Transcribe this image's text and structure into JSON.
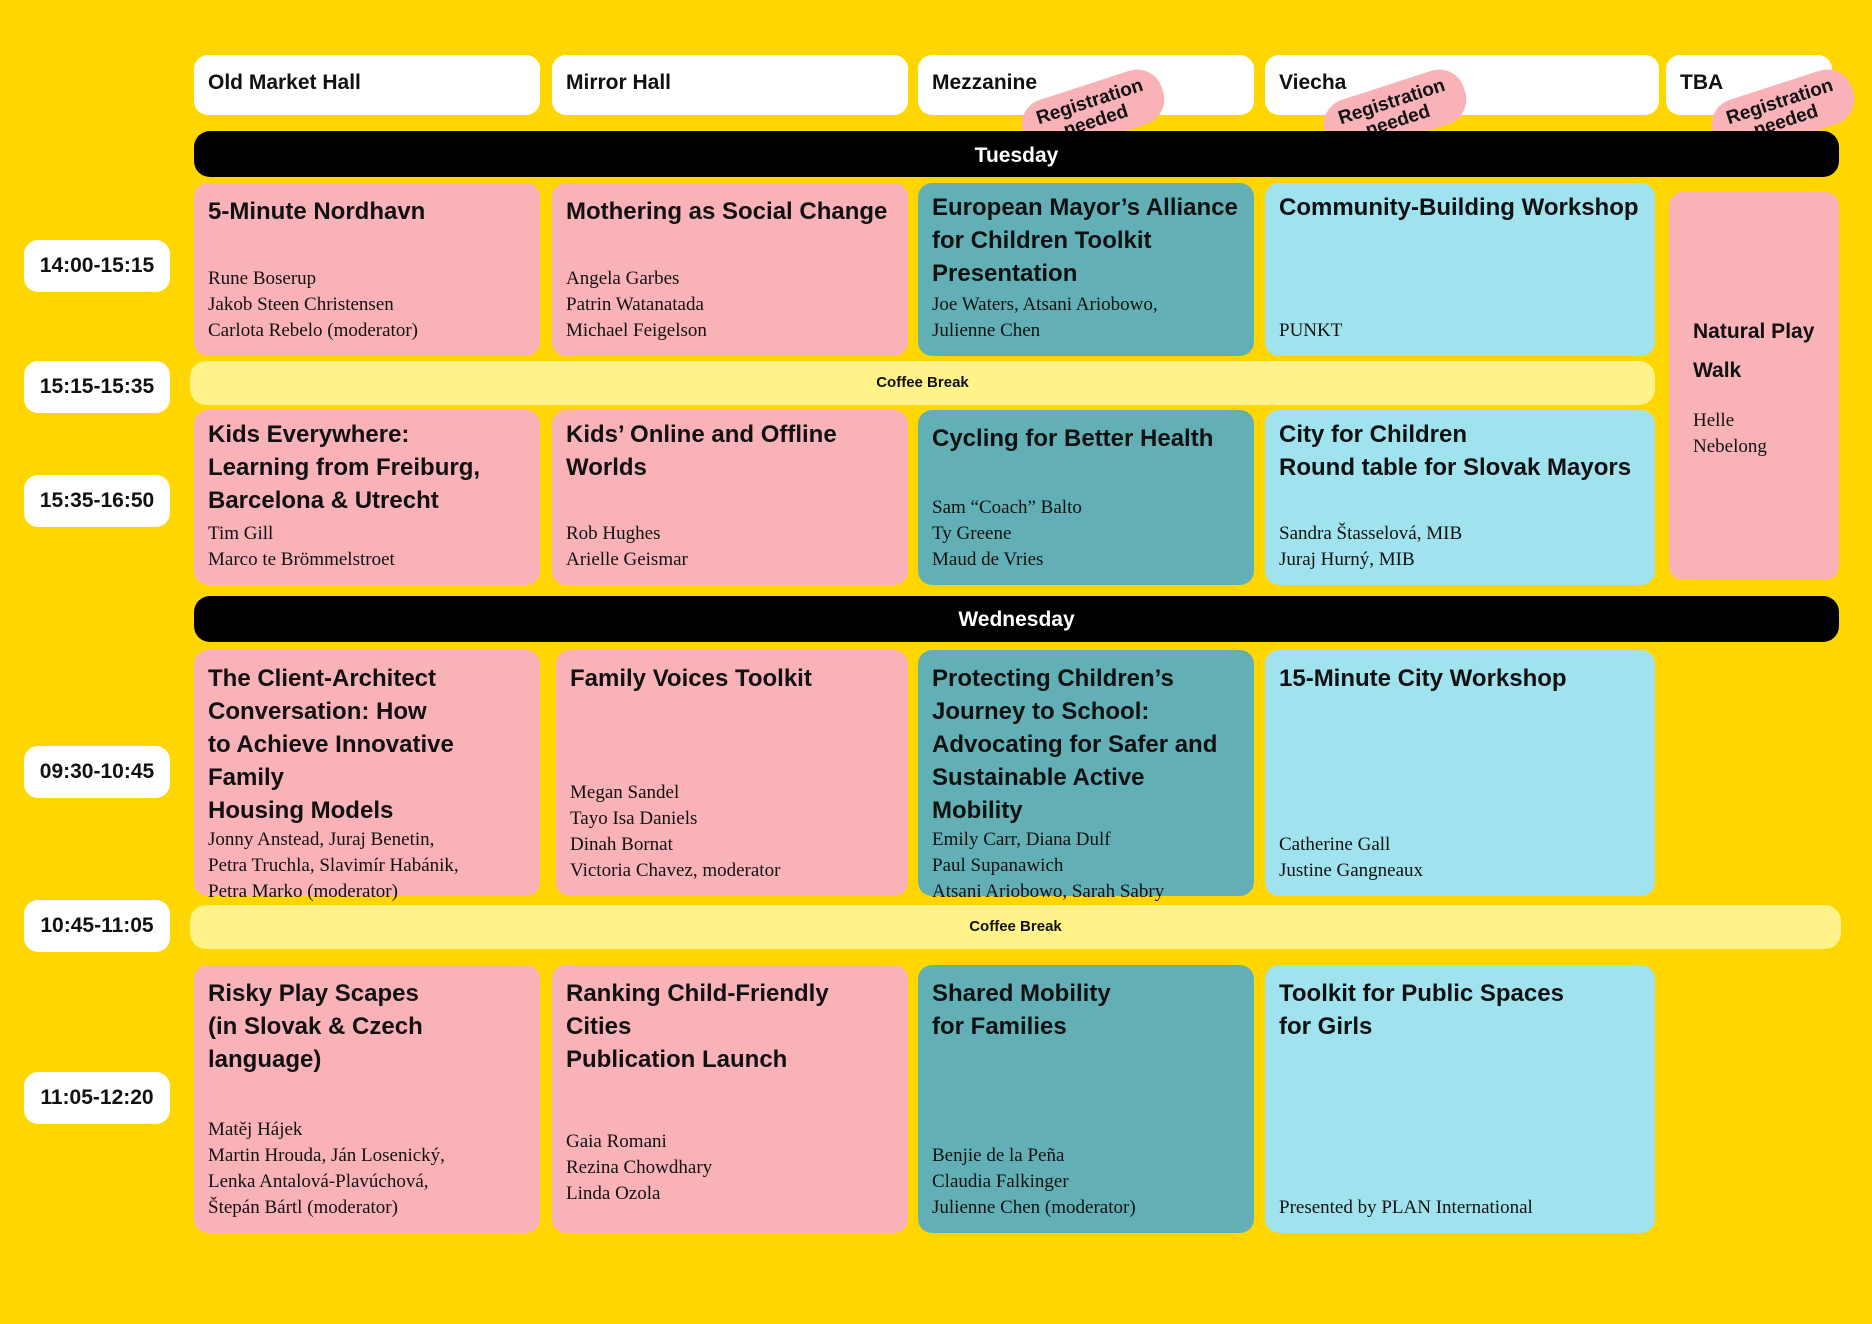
{
  "venues": [
    {
      "name": "Old Market Hall"
    },
    {
      "name": "Mirror Hall"
    },
    {
      "name": "Mezzanine",
      "registration": "Registration\nneeded"
    },
    {
      "name": "Viecha",
      "registration": "Registration\nneeded"
    },
    {
      "name": "TBA",
      "registration": "Registration\nneeded"
    }
  ],
  "days": {
    "tuesday": "Tuesday",
    "wednesday": "Wednesday"
  },
  "times": [
    "14:00-15:15",
    "15:15-15:35",
    "15:35-16:50",
    "09:30-10:45",
    "10:45-11:05",
    "11:05-12:20"
  ],
  "coffee_break": "Coffee Break",
  "colors": {
    "background": "#FFD600",
    "old_market_mirror": "#F8B2B8",
    "mezzanine": "#62B0B6",
    "viecha": "#A0E2EE",
    "coffee": "#FFF38A"
  },
  "sessions": {
    "t1": [
      {
        "title": "5-Minute Nordhavn",
        "people": "Rune Boserup\nJakob Steen Christensen\nCarlota Rebelo (moderator)"
      },
      {
        "title": "Mothering as Social Change",
        "people": "Angela Garbes\nPatrin Watanatada\nMichael Feigelson"
      },
      {
        "title": "European Mayor’s Alliance\nfor Children Toolkit\nPresentation",
        "people": "Joe Waters, Atsani Ariobowo,\nJulienne Chen"
      },
      {
        "title": "Community-Building Workshop",
        "people": "PUNKT"
      }
    ],
    "t2": [
      {
        "title": "Kids Everywhere:\nLearning from Freiburg,\nBarcelona & Utrecht",
        "people": "Tim Gill\nMarco te Brömmelstroet"
      },
      {
        "title": "Kids’ Online and Offline\nWorlds",
        "people": "Rob Hughes\nArielle Geismar"
      },
      {
        "title": "Cycling for Better Health",
        "people": "Sam “Coach” Balto\nTy Greene\nMaud de Vries"
      },
      {
        "title": "City for Children\nRound table for Slovak Mayors",
        "people": "Sandra Štasselová, MIB\nJuraj Hurný, MIB"
      }
    ],
    "tba": {
      "title": "Natural Play\nWalk",
      "people": "Helle\nNebelong"
    },
    "w1": [
      {
        "title": "The Client-Architect\nConversation: How\nto Achieve Innovative Family\nHousing Models",
        "people": "Jonny Anstead, Juraj Benetin,\nPetra Truchla, Slavimír Habánik,\nPetra Marko (moderator)"
      },
      {
        "title": "Family Voices Toolkit",
        "people": "Megan Sandel\nTayo Isa Daniels\nDinah Bornat\nVictoria Chavez, moderator"
      },
      {
        "title": "Protecting Children’s\nJourney to School:\nAdvocating for Safer and\nSustainable Active Mobility",
        "people": "Emily Carr, Diana Dulf\nPaul Supanawich\nAtsani Ariobowo, Sarah Sabry"
      },
      {
        "title": "15-Minute City Workshop",
        "people": "Catherine Gall\nJustine Gangneaux"
      }
    ],
    "w2": [
      {
        "title": "Risky Play Scapes\n(in Slovak & Czech language)",
        "people": "Matěj Hájek\nMartin Hrouda, Ján Losenický,\nLenka Antalová-Plavúchová,\nŠtepán Bártl (moderator)"
      },
      {
        "title": "Ranking Child-Friendly Cities\nPublication Launch",
        "people": "Gaia Romani\nRezina Chowdhary\nLinda Ozola"
      },
      {
        "title": "Shared Mobility\nfor Families",
        "people": "Benjie de la Peña\nClaudia Falkinger\nJulienne Chen (moderator)"
      },
      {
        "title": "Toolkit for Public Spaces\nfor Girls",
        "people": "Presented by PLAN International"
      }
    ]
  }
}
